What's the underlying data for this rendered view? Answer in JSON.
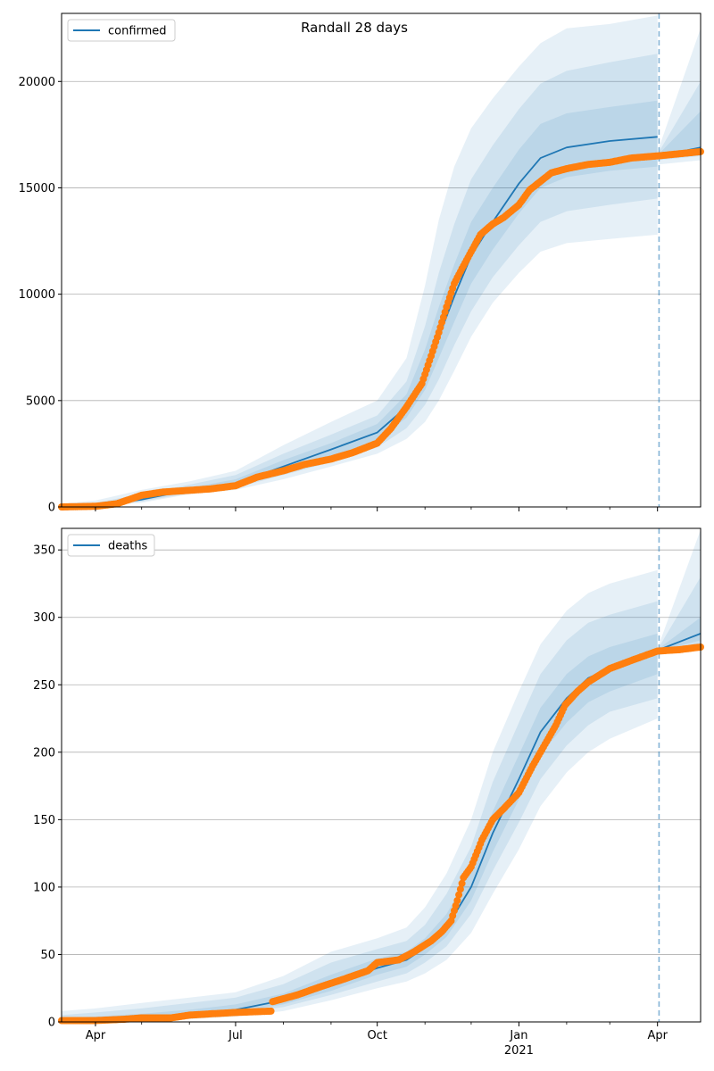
{
  "figure": {
    "title": "Randall 28 days"
  },
  "colors": {
    "model": "#1f77b4",
    "observed": "#ff7f0e",
    "band": "#1f77b4",
    "grid": "#b0b0b0",
    "vline": "#1f77b4"
  },
  "x_axis": {
    "start_date": "2020-03-10",
    "end_date": "2021-04-29",
    "major_ticks": [
      {
        "date": "2020-04-01",
        "label": "Apr",
        "sublabel": ""
      },
      {
        "date": "2020-07-01",
        "label": "Jul",
        "sublabel": ""
      },
      {
        "date": "2020-10-01",
        "label": "Oct",
        "sublabel": ""
      },
      {
        "date": "2021-01-01",
        "label": "Jan",
        "sublabel": "2021"
      },
      {
        "date": "2021-04-01",
        "label": "Apr",
        "sublabel": ""
      }
    ],
    "minor_ticks": [
      "2020-05-01",
      "2020-06-01",
      "2020-08-01",
      "2020-09-01",
      "2020-11-01",
      "2020-12-01",
      "2021-02-01",
      "2021-03-01"
    ],
    "forecast_start": "2021-04-02"
  },
  "chart_data": [
    {
      "type": "line",
      "legend": "confirmed",
      "legend_position": "upper left",
      "grid": "horizontal",
      "ylim": [
        0,
        23200
      ],
      "yticks": [
        0,
        5000,
        10000,
        15000,
        20000
      ],
      "model": {
        "dates": [
          "2020-03-10",
          "2020-04-01",
          "2020-05-01",
          "2020-06-01",
          "2020-07-01",
          "2020-08-01",
          "2020-09-01",
          "2020-10-01",
          "2020-10-20",
          "2020-11-01",
          "2020-11-10",
          "2020-11-20",
          "2020-12-01",
          "2020-12-15",
          "2021-01-01",
          "2021-01-15",
          "2021-02-01",
          "2021-03-01",
          "2021-04-01",
          "2021-04-02",
          "2021-04-29"
        ],
        "values": [
          0,
          40,
          350,
          800,
          1100,
          1900,
          2700,
          3500,
          4700,
          6200,
          8000,
          9900,
          11800,
          13400,
          15200,
          16400,
          16900,
          17200,
          17400,
          16500,
          16900
        ],
        "band95_lo": [
          0,
          20,
          200,
          600,
          800,
          1300,
          1900,
          2500,
          3200,
          4000,
          5000,
          6400,
          8000,
          9600,
          11000,
          12000,
          12400,
          12600,
          12800,
          16100,
          16300
        ],
        "band95_hi": [
          150,
          300,
          800,
          1200,
          1700,
          2900,
          4000,
          5000,
          7000,
          10400,
          13500,
          16000,
          17800,
          19200,
          20700,
          21800,
          22500,
          22700,
          23100,
          16900,
          22500
        ],
        "band80_lo": [
          0,
          30,
          250,
          650,
          900,
          1500,
          2100,
          2800,
          3700,
          4800,
          6000,
          7600,
          9200,
          10800,
          12300,
          13400,
          13900,
          14200,
          14500,
          16300,
          16500
        ],
        "band80_hi": [
          80,
          200,
          600,
          1050,
          1500,
          2500,
          3400,
          4300,
          5900,
          8500,
          11000,
          13300,
          15400,
          17000,
          18700,
          19900,
          20500,
          20900,
          21300,
          16700,
          20000
        ],
        "band50_lo": [
          0,
          35,
          300,
          720,
          1000,
          1700,
          2400,
          3100,
          4200,
          5500,
          7000,
          8700,
          10500,
          12100,
          13800,
          15000,
          15500,
          15800,
          16000,
          16400,
          16700
        ],
        "band50_hi": [
          40,
          100,
          450,
          900,
          1300,
          2200,
          3000,
          3900,
          5300,
          7400,
          9400,
          11400,
          13400,
          15000,
          16800,
          18000,
          18500,
          18800,
          19100,
          16600,
          18600
        ]
      },
      "observed": {
        "dates": [
          "2020-03-10",
          "2020-04-01",
          "2020-04-15",
          "2020-05-01",
          "2020-05-15",
          "2020-06-01",
          "2020-06-15",
          "2020-07-01",
          "2020-07-15",
          "2020-08-01",
          "2020-08-15",
          "2020-09-01",
          "2020-09-15",
          "2020-10-01",
          "2020-10-10",
          "2020-10-20",
          "2020-10-30",
          "2020-11-05",
          "2020-11-10",
          "2020-11-15",
          "2020-11-20",
          "2020-11-25",
          "2020-12-01",
          "2020-12-07",
          "2020-12-15",
          "2020-12-22",
          "2021-01-01",
          "2021-01-08",
          "2021-01-15",
          "2021-01-22",
          "2021-02-01",
          "2021-02-15",
          "2021-03-01",
          "2021-03-15",
          "2021-04-01",
          "2021-04-15",
          "2021-04-29"
        ],
        "values": [
          0,
          30,
          150,
          550,
          700,
          780,
          850,
          1000,
          1400,
          1700,
          2000,
          2250,
          2550,
          3000,
          3700,
          4700,
          5800,
          7100,
          8200,
          9400,
          10500,
          11200,
          12000,
          12800,
          13300,
          13600,
          14200,
          14900,
          15300,
          15700,
          15900,
          16100,
          16200,
          16400,
          16500,
          16600,
          16700
        ]
      }
    },
    {
      "type": "line",
      "legend": "deaths",
      "legend_position": "upper left",
      "grid": "horizontal",
      "ylim": [
        0,
        366
      ],
      "yticks": [
        0,
        50,
        100,
        150,
        200,
        250,
        300,
        350
      ],
      "model": {
        "dates": [
          "2020-03-10",
          "2020-04-01",
          "2020-05-01",
          "2020-06-01",
          "2020-07-01",
          "2020-08-01",
          "2020-09-01",
          "2020-10-01",
          "2020-10-20",
          "2020-11-01",
          "2020-11-15",
          "2020-12-01",
          "2020-12-15",
          "2021-01-01",
          "2021-01-15",
          "2021-02-01",
          "2021-02-15",
          "2021-03-01",
          "2021-04-01",
          "2021-04-02",
          "2021-04-29"
        ],
        "values": [
          0,
          1,
          3,
          6,
          9,
          16,
          28,
          40,
          46,
          55,
          70,
          100,
          140,
          180,
          215,
          240,
          255,
          262,
          273,
          276,
          288
        ],
        "band95_lo": [
          0,
          0,
          1,
          2,
          4,
          8,
          16,
          25,
          30,
          36,
          46,
          66,
          95,
          128,
          160,
          185,
          200,
          210,
          225,
          272,
          278
        ],
        "band95_hi": [
          8,
          10,
          14,
          18,
          22,
          34,
          52,
          62,
          70,
          85,
          110,
          150,
          200,
          245,
          280,
          305,
          318,
          325,
          335,
          280,
          365
        ],
        "band80_lo": [
          0,
          0,
          2,
          3,
          6,
          11,
          20,
          30,
          36,
          44,
          56,
          80,
          112,
          148,
          180,
          205,
          220,
          230,
          240,
          274,
          280
        ],
        "band80_hi": [
          5,
          7,
          10,
          14,
          18,
          28,
          44,
          54,
          60,
          72,
          95,
          130,
          178,
          222,
          258,
          283,
          296,
          302,
          312,
          278,
          330
        ],
        "band50_lo": [
          0,
          1,
          2,
          4,
          7,
          13,
          23,
          35,
          41,
          50,
          63,
          90,
          126,
          165,
          198,
          222,
          237,
          245,
          258,
          275,
          283
        ],
        "band50_hi": [
          3,
          4,
          6,
          9,
          13,
          21,
          35,
          47,
          52,
          62,
          80,
          112,
          156,
          198,
          233,
          258,
          271,
          278,
          288,
          277,
          300
        ]
      },
      "observed": {
        "dates": [
          "2020-03-10",
          "2020-04-01",
          "2020-04-20",
          "2020-05-01",
          "2020-05-20",
          "2020-06-01",
          "2020-06-15",
          "2020-07-01",
          "2020-07-24",
          "2020-07-25",
          "2020-08-10",
          "2020-08-25",
          "2020-09-10",
          "2020-09-25",
          "2020-10-01",
          "2020-10-15",
          "2020-10-25",
          "2020-11-05",
          "2020-11-12",
          "2020-11-18",
          "2020-11-22",
          "2020-11-26",
          "2020-12-01",
          "2020-12-08",
          "2020-12-15",
          "2020-12-22",
          "2021-01-01",
          "2021-01-10",
          "2021-01-20",
          "2021-01-25",
          "2021-01-31",
          "2021-02-08",
          "2021-02-15",
          "2021-03-01",
          "2021-03-15",
          "2021-04-01",
          "2021-04-15",
          "2021-04-29"
        ],
        "values": [
          1,
          1,
          2,
          3,
          3,
          5,
          6,
          7,
          8,
          15,
          20,
          26,
          32,
          38,
          44,
          46,
          52,
          60,
          67,
          75,
          90,
          107,
          115,
          135,
          150,
          158,
          170,
          190,
          210,
          220,
          235,
          245,
          252,
          262,
          268,
          275,
          276,
          278
        ]
      }
    }
  ]
}
